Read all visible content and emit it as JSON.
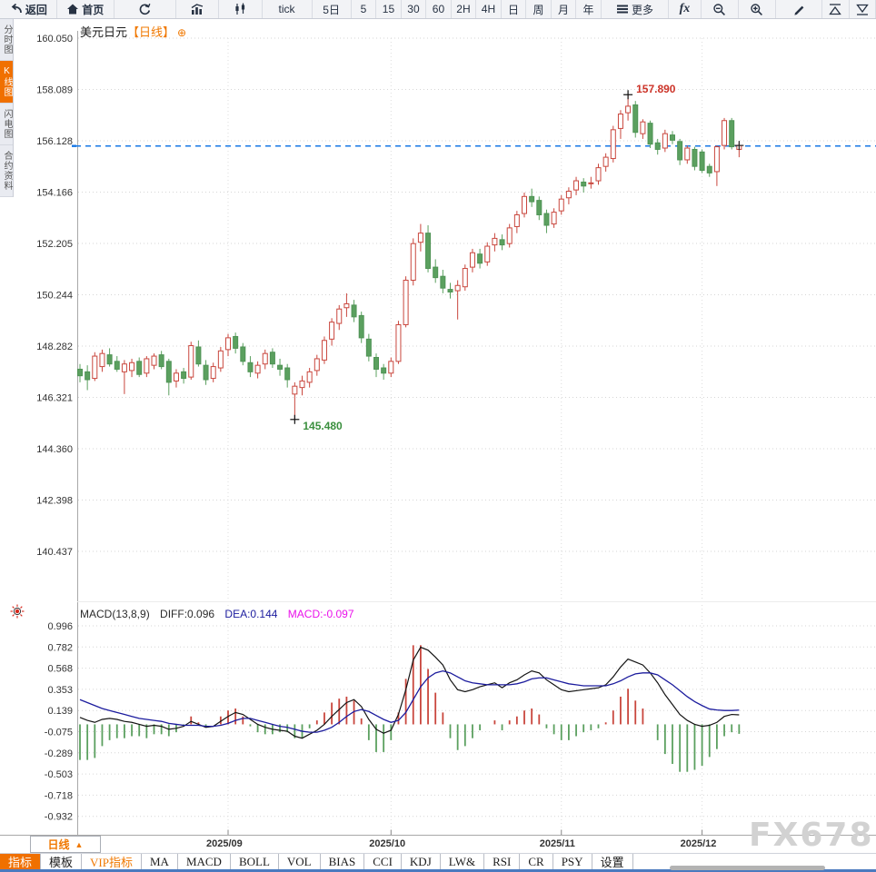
{
  "toolbar": {
    "items": [
      {
        "name": "back-button",
        "icon": "back",
        "label": "返回",
        "k": "nav"
      },
      {
        "name": "home-button",
        "icon": "home",
        "label": "首页",
        "k": "nav"
      },
      {
        "name": "refresh-button",
        "icon": "refresh",
        "label": "",
        "k": "ref"
      },
      {
        "name": "bar-chart-button",
        "icon": "bars",
        "label": "",
        "k": "chart"
      },
      {
        "name": "candlestick-chart-button",
        "icon": "candles",
        "label": "",
        "k": "chart"
      },
      {
        "name": "period-tick-button",
        "label": "tick",
        "k": "tick"
      },
      {
        "name": "period-5d-button",
        "label": "5日",
        "k": "p5d"
      },
      {
        "name": "period-5-button",
        "label": "5",
        "k": "per"
      },
      {
        "name": "period-15-button",
        "label": "15",
        "k": "per"
      },
      {
        "name": "period-30-button",
        "label": "30",
        "k": "per"
      },
      {
        "name": "period-60-button",
        "label": "60",
        "k": "per"
      },
      {
        "name": "period-2h-button",
        "label": "2H",
        "k": "per"
      },
      {
        "name": "period-4h-button",
        "label": "4H",
        "k": "per"
      },
      {
        "name": "period-day-button",
        "label": "日",
        "k": "per"
      },
      {
        "name": "period-week-button",
        "label": "周",
        "k": "per"
      },
      {
        "name": "period-month-button",
        "label": "月",
        "k": "per"
      },
      {
        "name": "period-year-button",
        "label": "年",
        "k": "per"
      },
      {
        "name": "more-button",
        "icon": "menu",
        "label": "更多",
        "k": "more"
      },
      {
        "name": "fx-indicator-button",
        "label": "fx",
        "k": "fx"
      },
      {
        "name": "zoom-out-button",
        "icon": "zoomout",
        "label": "",
        "k": "zoom"
      },
      {
        "name": "zoom-in-button",
        "icon": "zoomin",
        "label": "",
        "k": "zoom"
      },
      {
        "name": "draw-button",
        "icon": "pencil",
        "label": "",
        "k": "pen"
      },
      {
        "name": "panel-expand-button",
        "icon": "triup",
        "label": "",
        "k": "tri"
      },
      {
        "name": "panel-collapse-button",
        "icon": "tridown",
        "label": "",
        "k": "tri"
      }
    ]
  },
  "side_tabs": [
    {
      "name": "side-tab-time-share",
      "label": "分时图",
      "active": false
    },
    {
      "name": "side-tab-kline",
      "label": "K线图",
      "active": true
    },
    {
      "name": "side-tab-lightning",
      "label": "闪电图",
      "active": false
    },
    {
      "name": "side-tab-contract-info",
      "label": "合约资料",
      "active": false
    }
  ],
  "header": {
    "symbol": "美元日元",
    "period": "【日线】",
    "expand_icon": "⊕"
  },
  "macd_header": {
    "name_label": "MACD(13,8,9)",
    "diff_label": "DIFF:0.096",
    "dea_label": "DEA:0.144",
    "macd_label": "MACD:-0.097"
  },
  "bottom_bar": {
    "period_button": {
      "label": "日线",
      "arrow": "▲"
    },
    "tabs": [
      {
        "name": "bottom-tab-indicator",
        "label": "指标",
        "state": "active"
      },
      {
        "name": "bottom-tab-template",
        "label": "模板",
        "state": ""
      },
      {
        "name": "bottom-tab-vip-indicator",
        "label": "VIP指标",
        "state": "vip"
      },
      {
        "name": "bottom-tab-ma",
        "label": "MA",
        "state": ""
      },
      {
        "name": "bottom-tab-macd",
        "label": "MACD",
        "state": ""
      },
      {
        "name": "bottom-tab-boll",
        "label": "BOLL",
        "state": ""
      },
      {
        "name": "bottom-tab-vol",
        "label": "VOL",
        "state": ""
      },
      {
        "name": "bottom-tab-bias",
        "label": "BIAS",
        "state": ""
      },
      {
        "name": "bottom-tab-cci",
        "label": "CCI",
        "state": ""
      },
      {
        "name": "bottom-tab-kdj",
        "label": "KDJ",
        "state": ""
      },
      {
        "name": "bottom-tab-lw",
        "label": "LW&",
        "state": ""
      },
      {
        "name": "bottom-tab-rsi",
        "label": "RSI",
        "state": ""
      },
      {
        "name": "bottom-tab-cr",
        "label": "CR",
        "state": ""
      },
      {
        "name": "bottom-tab-psy",
        "label": "PSY",
        "state": ""
      },
      {
        "name": "bottom-tab-settings",
        "label": "设置",
        "state": ""
      }
    ]
  },
  "watermark": "FX678",
  "colors": {
    "up": "#c9463d",
    "down": "#5ba05f",
    "down_stroke": "#4f9355",
    "diff_line": "#141414",
    "dea_line": "#1c1c9e",
    "dashed_line": "#1677e6",
    "accent_orange": "#f07800",
    "annotation_high": "#cc3328",
    "annotation_low": "#3a8f3e",
    "grid": "#d6d6d6",
    "axis": "#a8a8a8",
    "axis_text": "#333333"
  },
  "chart_data": {
    "type": "candlestick",
    "symbol": "美元日元",
    "period": "日线",
    "price_axis": {
      "labels": [
        "160.050",
        "158.089",
        "156.128",
        "154.166",
        "152.205",
        "150.244",
        "148.282",
        "146.321",
        "144.360",
        "142.398",
        "140.437"
      ]
    },
    "months": [
      {
        "label": "2025/09",
        "index": 20
      },
      {
        "label": "2025/10",
        "index": 42
      },
      {
        "label": "2025/11",
        "index": 65
      },
      {
        "label": "2025/12",
        "index": 84
      }
    ],
    "current_price": 155.93,
    "high_marker": {
      "index": 74,
      "price": 157.89,
      "label": "157.890"
    },
    "low_marker": {
      "index": 29,
      "price": 145.48,
      "label": "145.480"
    },
    "candles": [
      [
        147.4,
        147.6,
        146.9,
        147.15
      ],
      [
        147.3,
        147.55,
        146.6,
        147.0
      ],
      [
        147.05,
        148.05,
        146.95,
        147.9
      ],
      [
        147.5,
        148.15,
        147.3,
        148.0
      ],
      [
        147.95,
        148.2,
        147.5,
        147.6
      ],
      [
        147.7,
        147.9,
        147.3,
        147.4
      ],
      [
        147.3,
        147.75,
        146.45,
        147.6
      ],
      [
        147.35,
        147.8,
        147.1,
        147.65
      ],
      [
        147.7,
        147.85,
        147.1,
        147.2
      ],
      [
        147.25,
        147.9,
        147.1,
        147.8
      ],
      [
        147.55,
        148.0,
        147.4,
        147.9
      ],
      [
        147.95,
        148.1,
        147.4,
        147.5
      ],
      [
        147.7,
        147.8,
        146.4,
        146.9
      ],
      [
        146.95,
        147.4,
        146.7,
        147.25
      ],
      [
        147.3,
        147.45,
        146.85,
        147.05
      ],
      [
        147.1,
        148.45,
        147.0,
        148.3
      ],
      [
        148.25,
        148.5,
        147.5,
        147.6
      ],
      [
        147.55,
        147.75,
        146.8,
        147.0
      ],
      [
        147.05,
        147.65,
        146.9,
        147.5
      ],
      [
        147.45,
        148.25,
        147.3,
        148.1
      ],
      [
        148.15,
        148.75,
        147.9,
        148.6
      ],
      [
        148.65,
        148.8,
        148.0,
        148.2
      ],
      [
        148.25,
        148.4,
        147.55,
        147.7
      ],
      [
        147.65,
        147.9,
        147.1,
        147.3
      ],
      [
        147.25,
        147.7,
        147.05,
        147.55
      ],
      [
        147.6,
        148.15,
        147.4,
        148.0
      ],
      [
        148.05,
        148.2,
        147.45,
        147.6
      ],
      [
        147.55,
        147.8,
        147.15,
        147.4
      ],
      [
        147.45,
        147.6,
        146.7,
        147.0
      ],
      [
        146.45,
        146.9,
        145.48,
        146.75
      ],
      [
        146.7,
        147.15,
        146.4,
        146.95
      ],
      [
        146.9,
        147.45,
        146.7,
        147.3
      ],
      [
        147.35,
        147.95,
        147.15,
        147.8
      ],
      [
        147.75,
        148.65,
        147.6,
        148.5
      ],
      [
        148.55,
        149.35,
        148.3,
        149.2
      ],
      [
        149.15,
        149.85,
        148.9,
        149.7
      ],
      [
        149.75,
        150.3,
        149.4,
        149.9
      ],
      [
        149.85,
        150.05,
        149.2,
        149.4
      ],
      [
        149.45,
        149.6,
        148.4,
        148.6
      ],
      [
        148.55,
        148.75,
        147.7,
        147.9
      ],
      [
        147.85,
        148.0,
        147.1,
        147.4
      ],
      [
        147.45,
        147.6,
        147.0,
        147.25
      ],
      [
        147.25,
        147.85,
        147.1,
        147.7
      ],
      [
        147.7,
        149.25,
        147.6,
        149.1
      ],
      [
        149.1,
        150.95,
        149.0,
        150.8
      ],
      [
        150.8,
        152.4,
        150.6,
        152.2
      ],
      [
        152.25,
        152.95,
        151.9,
        152.6
      ],
      [
        152.6,
        152.9,
        151.1,
        151.25
      ],
      [
        151.3,
        151.6,
        150.7,
        150.9
      ],
      [
        150.95,
        151.2,
        150.3,
        150.5
      ],
      [
        150.45,
        150.7,
        150.1,
        150.35
      ],
      [
        150.4,
        150.8,
        149.3,
        150.6
      ],
      [
        150.55,
        151.4,
        150.4,
        151.25
      ],
      [
        151.3,
        152.0,
        151.1,
        151.85
      ],
      [
        151.8,
        152.0,
        151.25,
        151.45
      ],
      [
        151.5,
        152.25,
        151.35,
        152.1
      ],
      [
        152.15,
        152.6,
        151.9,
        152.4
      ],
      [
        152.35,
        152.55,
        151.95,
        152.15
      ],
      [
        152.2,
        152.95,
        152.05,
        152.8
      ],
      [
        152.85,
        153.45,
        152.6,
        153.3
      ],
      [
        153.35,
        154.15,
        153.2,
        154.0
      ],
      [
        154.0,
        154.3,
        153.6,
        153.8
      ],
      [
        153.85,
        154.0,
        153.1,
        153.3
      ],
      [
        153.35,
        153.5,
        152.6,
        152.9
      ],
      [
        152.95,
        153.55,
        152.8,
        153.4
      ],
      [
        153.45,
        154.05,
        153.3,
        153.9
      ],
      [
        153.95,
        154.35,
        153.7,
        154.2
      ],
      [
        154.25,
        154.75,
        154.05,
        154.6
      ],
      [
        154.55,
        154.7,
        154.15,
        154.4
      ],
      [
        154.5,
        154.75,
        154.3,
        154.52
      ],
      [
        154.6,
        155.25,
        154.45,
        155.1
      ],
      [
        155.15,
        155.65,
        154.95,
        155.5
      ],
      [
        155.45,
        156.7,
        155.3,
        156.55
      ],
      [
        156.6,
        157.3,
        156.2,
        157.15
      ],
      [
        157.2,
        157.89,
        156.9,
        157.45
      ],
      [
        157.5,
        157.65,
        156.25,
        156.45
      ],
      [
        156.4,
        156.95,
        156.2,
        156.85
      ],
      [
        156.8,
        156.9,
        155.85,
        156.0
      ],
      [
        156.05,
        156.2,
        155.6,
        155.8
      ],
      [
        155.85,
        156.55,
        155.7,
        156.4
      ],
      [
        156.35,
        156.5,
        156.0,
        156.15
      ],
      [
        156.1,
        156.2,
        155.2,
        155.4
      ],
      [
        155.4,
        155.95,
        155.25,
        155.85
      ],
      [
        155.8,
        155.9,
        155.0,
        155.15
      ],
      [
        155.7,
        155.8,
        154.9,
        155.0
      ],
      [
        155.15,
        155.25,
        154.75,
        154.9
      ],
      [
        154.95,
        155.95,
        154.4,
        155.9
      ],
      [
        155.95,
        157.0,
        155.8,
        156.9
      ],
      [
        156.9,
        157.0,
        155.8,
        155.9
      ],
      [
        155.8,
        156.05,
        155.5,
        155.95
      ]
    ],
    "macd": {
      "params": "13,8,9",
      "axis_labels": [
        "0.996",
        "0.782",
        "0.568",
        "0.353",
        "0.139",
        "-0.075",
        "-0.289",
        "-0.503",
        "-0.718",
        "-0.932"
      ],
      "hist_formula": "2*(DIFF-DEA)",
      "diff": [
        0.07,
        0.04,
        0.02,
        0.05,
        0.06,
        0.05,
        0.03,
        0.02,
        0.0,
        -0.02,
        -0.01,
        -0.02,
        -0.05,
        -0.04,
        -0.02,
        0.03,
        0.0,
        -0.03,
        -0.02,
        0.03,
        0.08,
        0.12,
        0.1,
        0.05,
        0.0,
        -0.03,
        -0.05,
        -0.06,
        -0.07,
        -0.12,
        -0.14,
        -0.1,
        -0.06,
        0.0,
        0.08,
        0.15,
        0.22,
        0.25,
        0.18,
        0.05,
        -0.05,
        -0.09,
        -0.06,
        0.1,
        0.35,
        0.65,
        0.78,
        0.75,
        0.68,
        0.6,
        0.45,
        0.35,
        0.33,
        0.35,
        0.38,
        0.4,
        0.42,
        0.37,
        0.42,
        0.45,
        0.5,
        0.54,
        0.52,
        0.45,
        0.4,
        0.35,
        0.33,
        0.34,
        0.35,
        0.36,
        0.37,
        0.4,
        0.48,
        0.58,
        0.66,
        0.63,
        0.6,
        0.52,
        0.42,
        0.3,
        0.2,
        0.1,
        0.04,
        0.0,
        -0.02,
        -0.01,
        0.02,
        0.08,
        0.1,
        0.096
      ],
      "dea": [
        0.25,
        0.22,
        0.19,
        0.16,
        0.14,
        0.12,
        0.1,
        0.08,
        0.06,
        0.05,
        0.04,
        0.03,
        0.01,
        0.0,
        -0.01,
        -0.01,
        -0.01,
        -0.02,
        -0.02,
        -0.01,
        0.01,
        0.04,
        0.06,
        0.06,
        0.04,
        0.02,
        0.0,
        -0.02,
        -0.03,
        -0.05,
        -0.07,
        -0.08,
        -0.08,
        -0.06,
        -0.03,
        0.02,
        0.08,
        0.13,
        0.15,
        0.13,
        0.09,
        0.05,
        0.02,
        0.04,
        0.12,
        0.25,
        0.38,
        0.47,
        0.52,
        0.54,
        0.52,
        0.48,
        0.44,
        0.42,
        0.41,
        0.4,
        0.4,
        0.4,
        0.4,
        0.41,
        0.43,
        0.46,
        0.47,
        0.47,
        0.45,
        0.43,
        0.41,
        0.4,
        0.39,
        0.39,
        0.39,
        0.39,
        0.41,
        0.44,
        0.48,
        0.51,
        0.52,
        0.52,
        0.5,
        0.45,
        0.4,
        0.34,
        0.28,
        0.23,
        0.19,
        0.155,
        0.145,
        0.14,
        0.14,
        0.144
      ]
    }
  }
}
